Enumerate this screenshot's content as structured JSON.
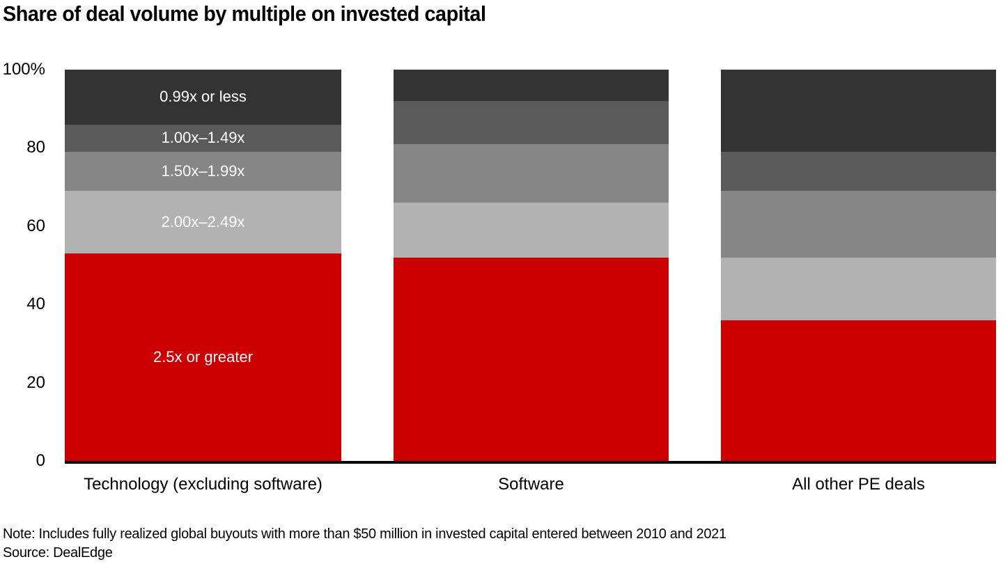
{
  "title": "Share of deal volume by multiple on invested capital",
  "note": "Note: Includes fully realized global buyouts with more than $50 million in invested capital entered between 2010 and 2021",
  "source": "Source: DealEdge",
  "colors": {
    "accent_red": "#cc0000",
    "axis_black": "#000000",
    "label_white": "#ffffff"
  },
  "chart_data": {
    "type": "bar",
    "stacked": true,
    "orientation": "vertical",
    "title": "Share of deal volume by multiple on invested capital",
    "categories": [
      "Technology (excluding software)",
      "Software",
      "All other PE deals"
    ],
    "series": [
      {
        "name": "0.99x or less",
        "color": "#333333",
        "values": [
          14,
          8,
          21
        ]
      },
      {
        "name": "1.00x–1.49x",
        "color": "#5a5a5a",
        "values": [
          7,
          11,
          10
        ]
      },
      {
        "name": "1.50x–1.99x",
        "color": "#868686",
        "values": [
          10,
          15,
          17
        ]
      },
      {
        "name": "2.00x–2.49x",
        "color": "#b2b2b2",
        "values": [
          16,
          14,
          16
        ]
      },
      {
        "name": "2.5x or greater",
        "color": "#cc0000",
        "values": [
          53,
          52,
          36
        ]
      }
    ],
    "xlabel": "",
    "ylabel": "",
    "ylim": [
      0,
      100
    ],
    "yticks": [
      "100%",
      "80",
      "60",
      "40",
      "20",
      "0"
    ],
    "grid": false,
    "legend_position": "labels-inside-first-bar",
    "units": "%"
  }
}
